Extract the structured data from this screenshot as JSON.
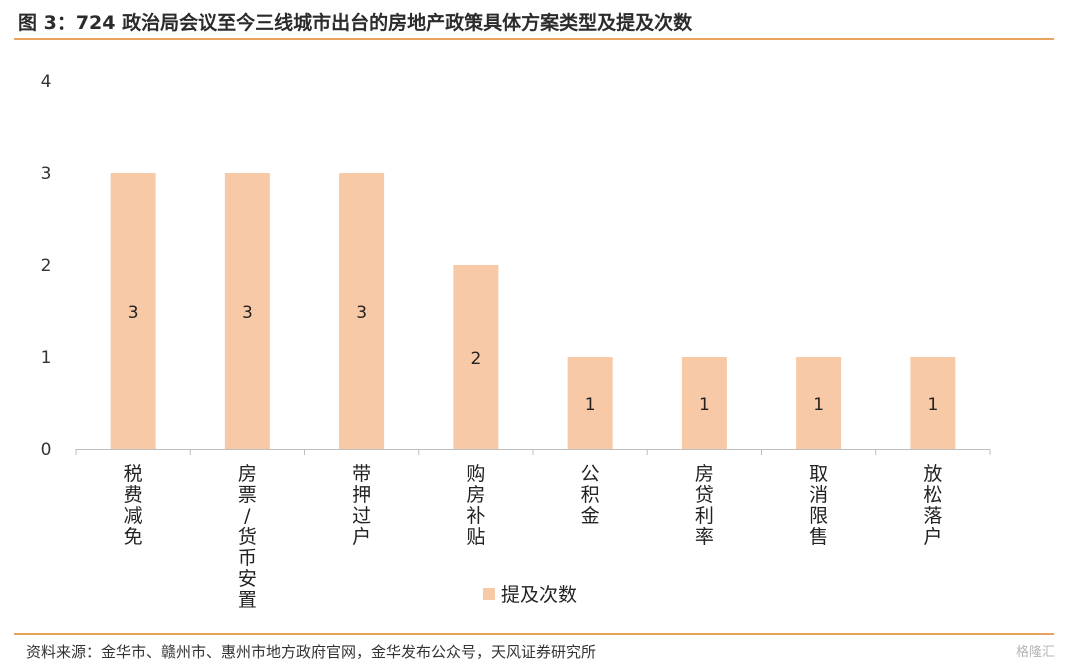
{
  "header": {
    "title": "图 3：724 政治局会议至今三线城市出台的房地产政策具体方案类型及提及次数"
  },
  "footer": {
    "source": "资料来源：金华市、赣州市、惠州市地方政府官网，金华发布公众号，天风证券研究所",
    "watermark": "格隆汇"
  },
  "colors": {
    "accent_line": "#e8a25b",
    "bar": "#f8c9a6",
    "axis": "#bfbfbf"
  },
  "chart_data": {
    "type": "bar",
    "categories": [
      "税费减免",
      "房票/货币安置",
      "带押过户",
      "购房补贴",
      "公积金",
      "房贷利率",
      "取消限售",
      "放松落户"
    ],
    "series": [
      {
        "name": "提及次数",
        "values": [
          3,
          3,
          3,
          2,
          1,
          1,
          1,
          1
        ]
      }
    ],
    "data_labels": [
      "3",
      "3",
      "3",
      "2",
      "1",
      "1",
      "1",
      "1"
    ],
    "ylim": [
      0,
      4
    ],
    "yticks": [
      "0",
      "1",
      "2",
      "3",
      "4"
    ],
    "grid": false,
    "legend": "bottom",
    "title": "",
    "xlabel": "",
    "ylabel": ""
  }
}
